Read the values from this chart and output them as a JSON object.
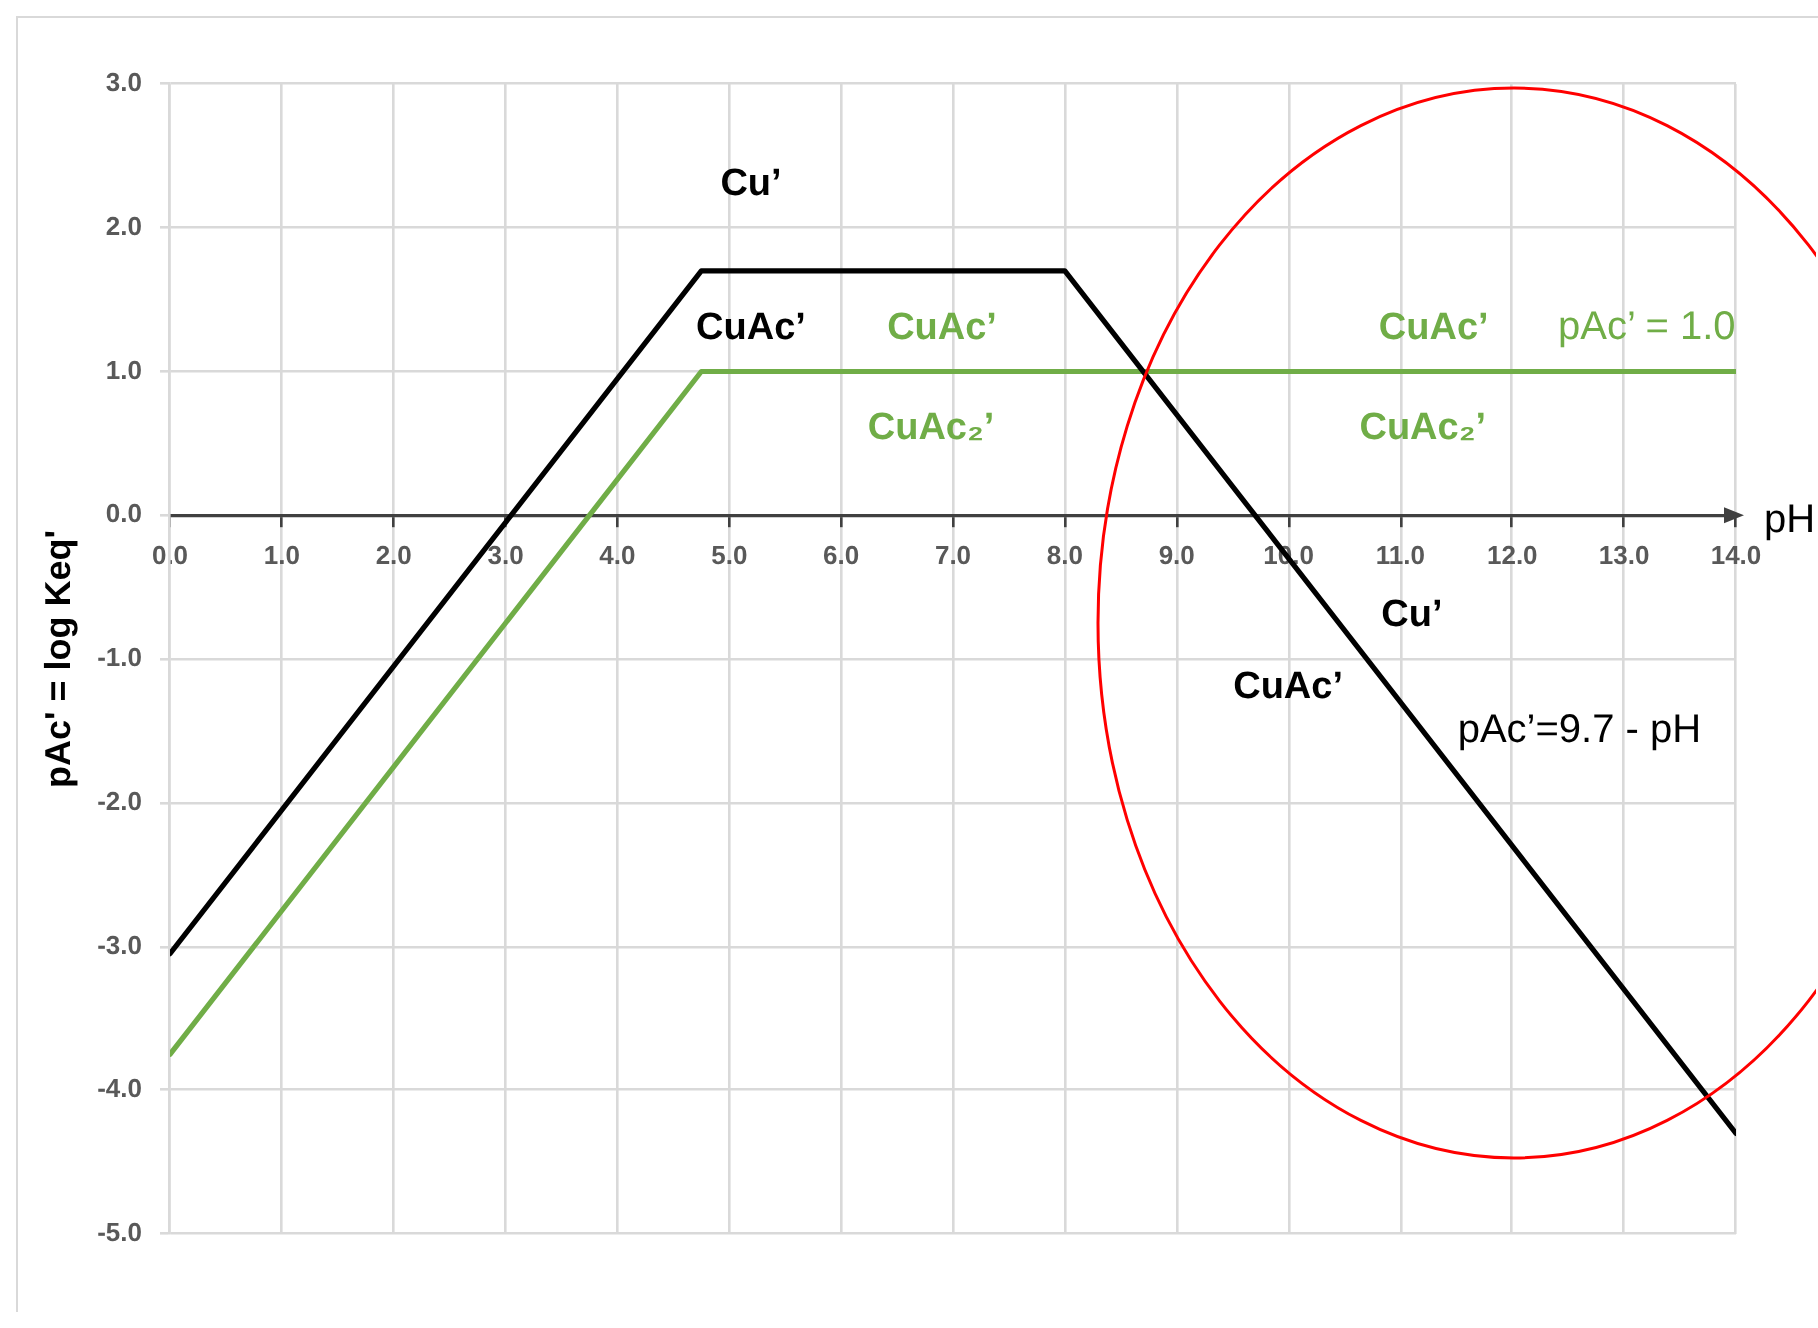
{
  "chart_data": {
    "type": "line",
    "xlabel": "pH",
    "ylabel": "pAc' = log Keq'",
    "xlim": [
      0,
      14
    ],
    "xticks": [
      {
        "value": 0,
        "label": "0.0"
      },
      {
        "value": 1,
        "label": "1.0"
      },
      {
        "value": 2,
        "label": "2.0"
      },
      {
        "value": 3,
        "label": "3.0"
      },
      {
        "value": 4,
        "label": "4.0"
      },
      {
        "value": 5,
        "label": "5.0"
      },
      {
        "value": 6,
        "label": "6.0"
      },
      {
        "value": 7,
        "label": "7.0"
      },
      {
        "value": 8,
        "label": "8.0"
      },
      {
        "value": 9,
        "label": "9.0"
      },
      {
        "value": 10,
        "label": "10.0"
      },
      {
        "value": 11,
        "label": "11.0"
      },
      {
        "value": 12,
        "label": "12.0"
      },
      {
        "value": 13,
        "label": "13.0"
      },
      {
        "value": 14,
        "label": "14.0"
      }
    ],
    "ylim": [
      -5,
      3
    ],
    "yticks": [
      {
        "value": -5,
        "label": "-5.0"
      },
      {
        "value": -4,
        "label": "-4.0"
      },
      {
        "value": -3,
        "label": "-3.0"
      },
      {
        "value": -2,
        "label": "-2.0"
      },
      {
        "value": -1,
        "label": "-1.0"
      },
      {
        "value": 0,
        "label": "0.0"
      },
      {
        "value": 1,
        "label": "1.0"
      },
      {
        "value": 2,
        "label": "2.0"
      },
      {
        "value": 3,
        "label": "3.0"
      }
    ],
    "grid": true,
    "legend": false,
    "series": [
      {
        "color": "#000000",
        "x": [
          0,
          4.75,
          8,
          14
        ],
        "values": [
          -3.05,
          1.7,
          1.7,
          -4.3
        ]
      },
      {
        "color": "#70ad47",
        "x": [
          0,
          4.75,
          14
        ],
        "values": [
          -3.75,
          1,
          1
        ]
      }
    ],
    "annotations": [
      "Cu’",
      "CuAc’",
      "CuAc’",
      "CuAc₂’",
      "CuAc’",
      "pAc’ = 1.0",
      "CuAc₂’",
      "Cu’",
      "CuAc’",
      "pAc’=9.7 - pH"
    ]
  }
}
